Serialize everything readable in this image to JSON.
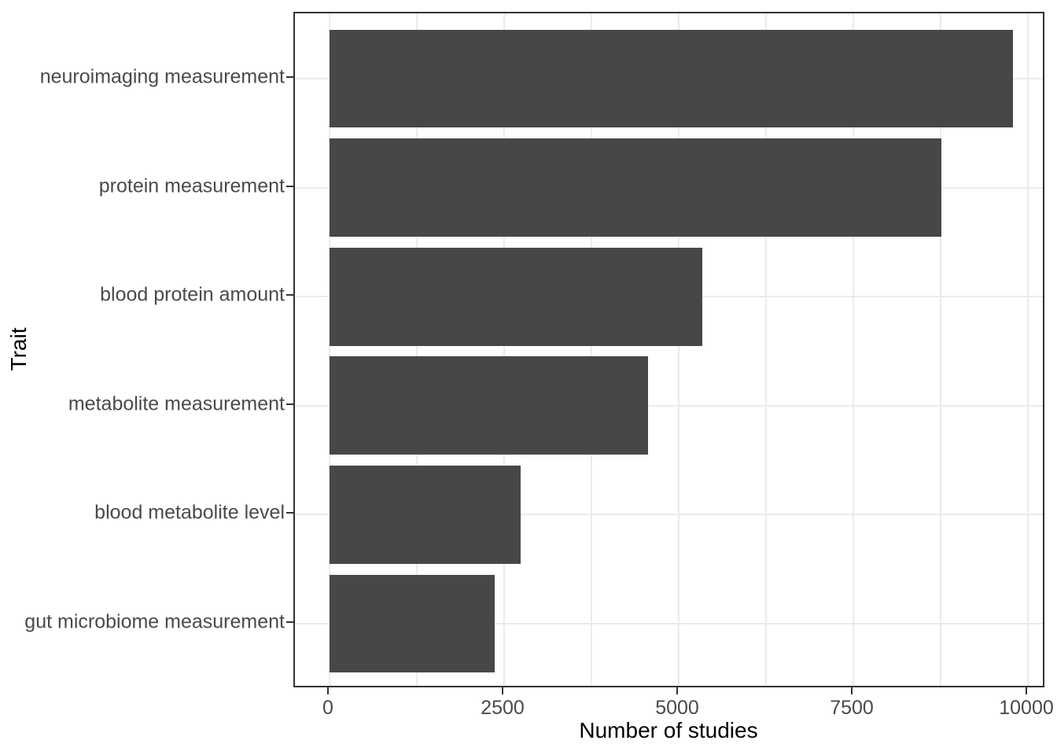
{
  "chart_data": {
    "type": "bar",
    "orientation": "horizontal",
    "title": "",
    "categories": [
      "neuroimaging measurement",
      "protein measurement",
      "blood protein amount",
      "metabolite measurement",
      "blood metabolite level",
      "gut microbiome measurement"
    ],
    "values": [
      9790,
      8760,
      5340,
      4560,
      2740,
      2360
    ],
    "xlabel": "Number of studies",
    "ylabel": "Trait",
    "xlim": [
      0,
      10000
    ],
    "x_ticks": [
      0,
      2500,
      5000,
      7500,
      10000
    ],
    "x_minor_gridlines": [
      1250,
      3750,
      6250,
      8750
    ],
    "grid": "vertical major+minor, horizontal major at category centers",
    "legend": "none",
    "colors": {
      "bar_fill": "#474747",
      "panel_border": "#333333",
      "gridline": "#ebebeb",
      "tick_label": "#4a4a4a",
      "axis_title": "#000000",
      "background": "#ffffff"
    }
  }
}
